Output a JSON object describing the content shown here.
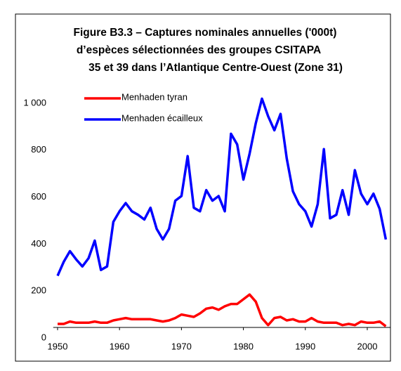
{
  "chart_data": {
    "type": "line",
    "title": [
      "Figure B3.3 – Captures nominales annuelles ('000t)",
      "d’espèces sélectionnées des groupes CSITAPA",
      "35 et 39 dans l’Atlantique Centre-Ouest (Zone 31)"
    ],
    "x": [
      1950,
      1951,
      1952,
      1953,
      1954,
      1955,
      1956,
      1957,
      1958,
      1959,
      1960,
      1961,
      1962,
      1963,
      1964,
      1965,
      1966,
      1967,
      1968,
      1969,
      1970,
      1971,
      1972,
      1973,
      1974,
      1975,
      1976,
      1977,
      1978,
      1979,
      1980,
      1981,
      1982,
      1983,
      1984,
      1985,
      1986,
      1987,
      1988,
      1989,
      1990,
      1991,
      1992,
      1993,
      1994,
      1995,
      1996,
      1997,
      1998,
      1999,
      2000,
      2001,
      2002,
      2003
    ],
    "series": [
      {
        "name": "Menhaden tyran",
        "color": "#ff0000",
        "values": [
          15,
          15,
          25,
          20,
          20,
          20,
          25,
          20,
          20,
          30,
          35,
          40,
          35,
          35,
          35,
          35,
          30,
          25,
          30,
          40,
          55,
          50,
          45,
          60,
          80,
          85,
          75,
          90,
          100,
          100,
          120,
          140,
          110,
          40,
          10,
          40,
          45,
          30,
          35,
          25,
          25,
          40,
          25,
          20,
          20,
          20,
          10,
          15,
          10,
          25,
          20,
          20,
          25,
          5
        ]
      },
      {
        "name": "Menhaden écailleux",
        "color": "#0000ff",
        "values": [
          220,
          280,
          325,
          290,
          260,
          295,
          370,
          245,
          260,
          450,
          495,
          530,
          495,
          480,
          460,
          510,
          420,
          375,
          420,
          540,
          560,
          730,
          510,
          495,
          585,
          540,
          560,
          495,
          825,
          780,
          630,
          740,
          870,
          975,
          900,
          840,
          910,
          720,
          580,
          525,
          495,
          430,
          525,
          760,
          465,
          480,
          585,
          480,
          670,
          570,
          525,
          570,
          505,
          375
        ]
      }
    ],
    "xlim": [
      1949.3,
      2003.7
    ],
    "xticks": [
      1950,
      1960,
      1970,
      1980,
      1990,
      2000
    ],
    "ylim": [
      0,
      1000
    ],
    "yticks": [
      0,
      200,
      400,
      600,
      800,
      {
        "value": 1000,
        "label": "1 000"
      }
    ],
    "legend": "top-left",
    "grid": false
  }
}
